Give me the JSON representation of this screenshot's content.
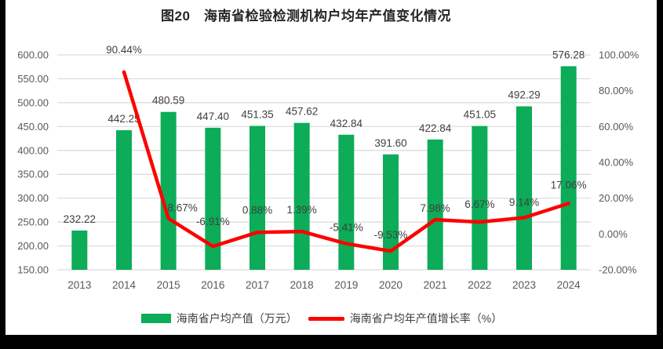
{
  "title": "图20　海南省检验检测机构户均年产值变化情况",
  "chart_data": {
    "type": "combo",
    "title": "图20　海南省检验检测机构户均年产值变化情况",
    "categories": [
      "2013",
      "2014",
      "2015",
      "2016",
      "2017",
      "2018",
      "2019",
      "2020",
      "2021",
      "2022",
      "2023",
      "2024"
    ],
    "series": [
      {
        "name": "海南省户均产值（万元）",
        "type": "bar",
        "axis": "left",
        "color": "#0CAC58",
        "values": [
          232.22,
          442.25,
          480.59,
          447.4,
          451.35,
          457.62,
          432.84,
          391.6,
          422.84,
          451.05,
          492.29,
          576.28
        ],
        "labels": [
          "232.22",
          "442.25",
          "480.59",
          "447.40",
          "451.35",
          "457.62",
          "432.84",
          "391.60",
          "422.84",
          "451.05",
          "492.29",
          "576.28"
        ]
      },
      {
        "name": "海南省户均年产值增长率（%）",
        "type": "line",
        "axis": "right",
        "color": "#FE0000",
        "values": [
          null,
          90.44,
          8.67,
          -6.91,
          0.88,
          1.39,
          -5.41,
          -9.53,
          7.98,
          6.67,
          9.14,
          17.06
        ],
        "labels": [
          null,
          "90.44%",
          "8.67%",
          "-6.91%",
          "0.88%",
          "1.39%",
          "-5.41%",
          "-9.53%",
          "7.98%",
          "6.67%",
          "9.14%",
          "17.06%"
        ]
      }
    ],
    "left_axis": {
      "min": 150,
      "max": 600,
      "step": 50,
      "tick_labels": [
        "600.00",
        "550.00",
        "500.00",
        "450.00",
        "400.00",
        "350.00",
        "300.00",
        "250.00",
        "200.00",
        "150.00"
      ]
    },
    "right_axis": {
      "min": -20,
      "max": 100,
      "step": 20,
      "tick_labels": [
        "100.00%",
        "80.00%",
        "60.00%",
        "40.00%",
        "20.00%",
        "0.00%",
        "-20.00%"
      ]
    },
    "grid": true,
    "legend_position": "bottom",
    "colors": {
      "grid": "#D9D9D9",
      "axis_text": "#595959",
      "label_text": "#404040",
      "background": "#FFFFFF",
      "frame": "#000000"
    }
  }
}
